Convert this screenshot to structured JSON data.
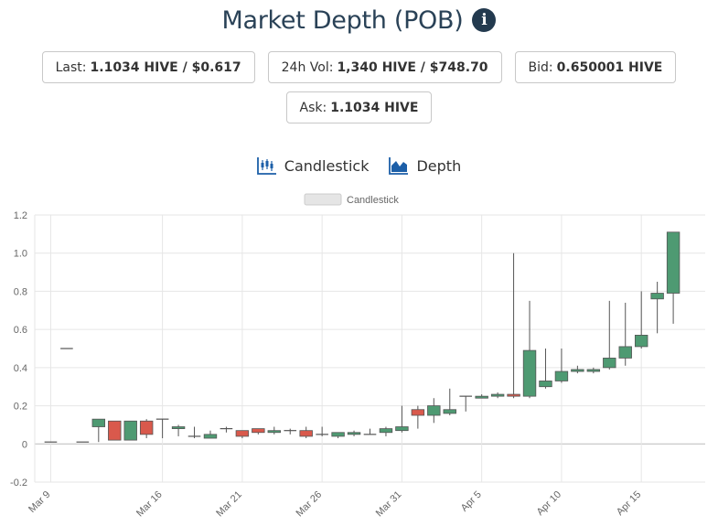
{
  "header": {
    "title": "Market Depth (POB)",
    "info_icon": "info-circle-icon"
  },
  "stats": {
    "last": {
      "label": "Last:",
      "value": "1.1034 HIVE / $0.617"
    },
    "vol24": {
      "label": "24h Vol:",
      "value": "1,340 HIVE / $748.70"
    },
    "bid": {
      "label": "Bid:",
      "value": "0.650001 HIVE"
    },
    "ask": {
      "label": "Ask:",
      "value": "1.1034 HIVE"
    }
  },
  "tabs": {
    "candlestick": {
      "label": "Candlestick",
      "icon": "candlestick-chart-icon"
    },
    "depth": {
      "label": "Depth",
      "icon": "area-chart-icon"
    }
  },
  "colors": {
    "up": "#4e9a72",
    "down": "#d9594c",
    "title": "#2a4257",
    "icon_blue": "#1c5fa8"
  },
  "chart_data": {
    "type": "candlestick",
    "legend": {
      "label": "Candlestick",
      "placement": "top-center"
    },
    "grid": true,
    "ylim": [
      -0.2,
      1.2
    ],
    "yticks": [
      -0.2,
      0,
      0.2,
      0.4,
      0.6,
      0.8,
      1.0,
      1.2
    ],
    "ytick_labels": [
      "-0.2",
      "0",
      "0.2",
      "0.4",
      "0.6",
      "0.8",
      "1.0",
      "1.2"
    ],
    "xlim": [
      "Mar 8",
      "Apr 19"
    ],
    "xticks": [
      "Mar 9",
      "Mar 16",
      "Mar 21",
      "Mar 26",
      "Mar 31",
      "Apr 5",
      "Apr 10",
      "Apr 15"
    ],
    "candles": [
      {
        "date": "Mar 9",
        "open": 0.01,
        "high": 0.01,
        "low": 0.01,
        "close": 0.01
      },
      {
        "date": "Mar 10",
        "open": 0.5,
        "high": 0.5,
        "low": 0.5,
        "close": 0.5
      },
      {
        "date": "Mar 11",
        "open": 0.01,
        "high": 0.01,
        "low": 0.01,
        "close": 0.01
      },
      {
        "date": "Mar 12",
        "open": 0.09,
        "high": 0.13,
        "low": 0.01,
        "close": 0.13
      },
      {
        "date": "Mar 13",
        "open": 0.12,
        "high": 0.12,
        "low": 0.02,
        "close": 0.02
      },
      {
        "date": "Mar 14",
        "open": 0.02,
        "high": 0.12,
        "low": 0.02,
        "close": 0.12
      },
      {
        "date": "Mar 15",
        "open": 0.12,
        "high": 0.13,
        "low": 0.03,
        "close": 0.05
      },
      {
        "date": "Mar 16",
        "open": 0.13,
        "high": 0.13,
        "low": 0.03,
        "close": 0.13
      },
      {
        "date": "Mar 17",
        "open": 0.08,
        "high": 0.1,
        "low": 0.04,
        "close": 0.09
      },
      {
        "date": "Mar 18",
        "open": 0.04,
        "high": 0.09,
        "low": 0.03,
        "close": 0.04
      },
      {
        "date": "Mar 19",
        "open": 0.03,
        "high": 0.07,
        "low": 0.03,
        "close": 0.05
      },
      {
        "date": "Mar 20",
        "open": 0.08,
        "high": 0.09,
        "low": 0.06,
        "close": 0.08
      },
      {
        "date": "Mar 21",
        "open": 0.07,
        "high": 0.07,
        "low": 0.03,
        "close": 0.04
      },
      {
        "date": "Mar 22",
        "open": 0.08,
        "high": 0.08,
        "low": 0.05,
        "close": 0.06
      },
      {
        "date": "Mar 23",
        "open": 0.06,
        "high": 0.09,
        "low": 0.05,
        "close": 0.07
      },
      {
        "date": "Mar 24",
        "open": 0.07,
        "high": 0.08,
        "low": 0.05,
        "close": 0.07
      },
      {
        "date": "Mar 25",
        "open": 0.07,
        "high": 0.09,
        "low": 0.03,
        "close": 0.04
      },
      {
        "date": "Mar 26",
        "open": 0.05,
        "high": 0.09,
        "low": 0.04,
        "close": 0.05
      },
      {
        "date": "Mar 27",
        "open": 0.04,
        "high": 0.06,
        "low": 0.03,
        "close": 0.06
      },
      {
        "date": "Mar 28",
        "open": 0.05,
        "high": 0.07,
        "low": 0.04,
        "close": 0.06
      },
      {
        "date": "Mar 29",
        "open": 0.05,
        "high": 0.08,
        "low": 0.05,
        "close": 0.05
      },
      {
        "date": "Mar 30",
        "open": 0.06,
        "high": 0.09,
        "low": 0.04,
        "close": 0.08
      },
      {
        "date": "Mar 31",
        "open": 0.07,
        "high": 0.2,
        "low": 0.06,
        "close": 0.09
      },
      {
        "date": "Apr 1",
        "open": 0.18,
        "high": 0.2,
        "low": 0.08,
        "close": 0.15
      },
      {
        "date": "Apr 2",
        "open": 0.15,
        "high": 0.24,
        "low": 0.11,
        "close": 0.2
      },
      {
        "date": "Apr 3",
        "open": 0.16,
        "high": 0.29,
        "low": 0.15,
        "close": 0.18
      },
      {
        "date": "Apr 4",
        "open": 0.25,
        "high": 0.25,
        "low": 0.17,
        "close": 0.25
      },
      {
        "date": "Apr 5",
        "open": 0.24,
        "high": 0.26,
        "low": 0.24,
        "close": 0.25
      },
      {
        "date": "Apr 6",
        "open": 0.25,
        "high": 0.27,
        "low": 0.24,
        "close": 0.26
      },
      {
        "date": "Apr 7",
        "open": 0.26,
        "high": 1.0,
        "low": 0.24,
        "close": 0.25
      },
      {
        "date": "Apr 8",
        "open": 0.25,
        "high": 0.75,
        "low": 0.24,
        "close": 0.49
      },
      {
        "date": "Apr 9",
        "open": 0.3,
        "high": 0.5,
        "low": 0.29,
        "close": 0.33
      },
      {
        "date": "Apr 10",
        "open": 0.33,
        "high": 0.5,
        "low": 0.32,
        "close": 0.38
      },
      {
        "date": "Apr 11",
        "open": 0.38,
        "high": 0.41,
        "low": 0.37,
        "close": 0.39
      },
      {
        "date": "Apr 12",
        "open": 0.38,
        "high": 0.4,
        "low": 0.37,
        "close": 0.39
      },
      {
        "date": "Apr 13",
        "open": 0.4,
        "high": 0.75,
        "low": 0.39,
        "close": 0.45
      },
      {
        "date": "Apr 14",
        "open": 0.45,
        "high": 0.74,
        "low": 0.41,
        "close": 0.51
      },
      {
        "date": "Apr 15",
        "open": 0.51,
        "high": 0.8,
        "low": 0.5,
        "close": 0.57
      },
      {
        "date": "Apr 16",
        "open": 0.76,
        "high": 0.85,
        "low": 0.58,
        "close": 0.79
      },
      {
        "date": "Apr 17",
        "open": 0.79,
        "high": 1.11,
        "low": 0.63,
        "close": 1.11
      }
    ]
  }
}
